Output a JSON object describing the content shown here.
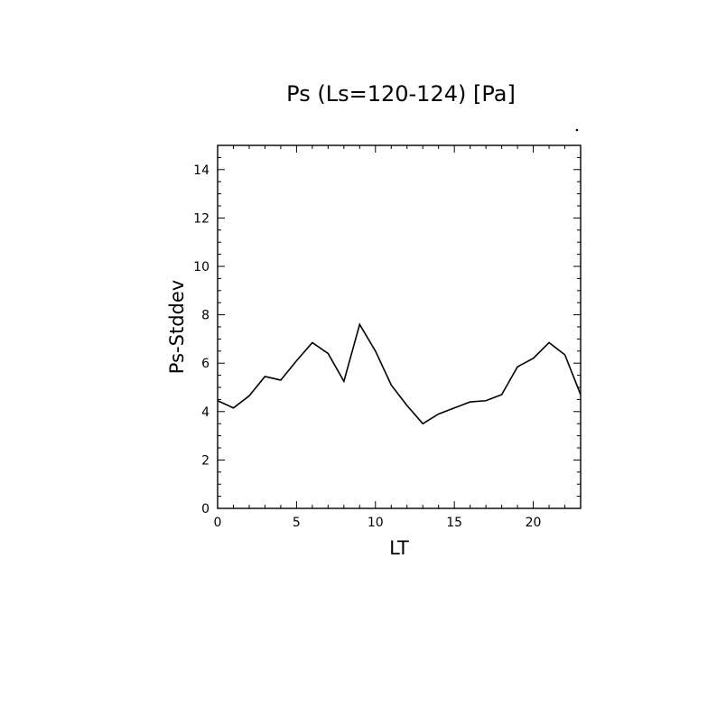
{
  "chart_data": {
    "type": "line",
    "title": "Ps (Ls=120-124) [Pa]",
    "xlabel": "LT",
    "ylabel": "Ps-Stddev",
    "xlim": [
      0,
      23
    ],
    "ylim": [
      0,
      15
    ],
    "xticks": [
      0,
      5,
      10,
      15,
      20
    ],
    "xtick_labels": [
      "0",
      "5",
      "10",
      "15",
      "20"
    ],
    "yticks": [
      0,
      2,
      4,
      6,
      8,
      10,
      12,
      14
    ],
    "ytick_labels": [
      "0",
      "2",
      "4",
      "6",
      "8",
      "10",
      "12",
      "14"
    ],
    "grid": false,
    "series": [
      {
        "x": [
          0,
          1,
          2,
          3,
          4,
          5,
          6,
          7,
          8,
          9,
          10,
          11,
          12,
          13,
          14,
          15,
          16,
          17,
          18,
          19,
          20,
          21,
          22,
          23
        ],
        "values": [
          4.45,
          4.15,
          4.65,
          5.45,
          5.3,
          6.1,
          6.85,
          6.4,
          5.25,
          7.6,
          6.5,
          5.1,
          4.25,
          3.5,
          3.9,
          4.15,
          4.4,
          4.45,
          4.7,
          5.85,
          6.2,
          6.85,
          6.35,
          4.7
        ],
        "color": "#000000"
      }
    ]
  }
}
